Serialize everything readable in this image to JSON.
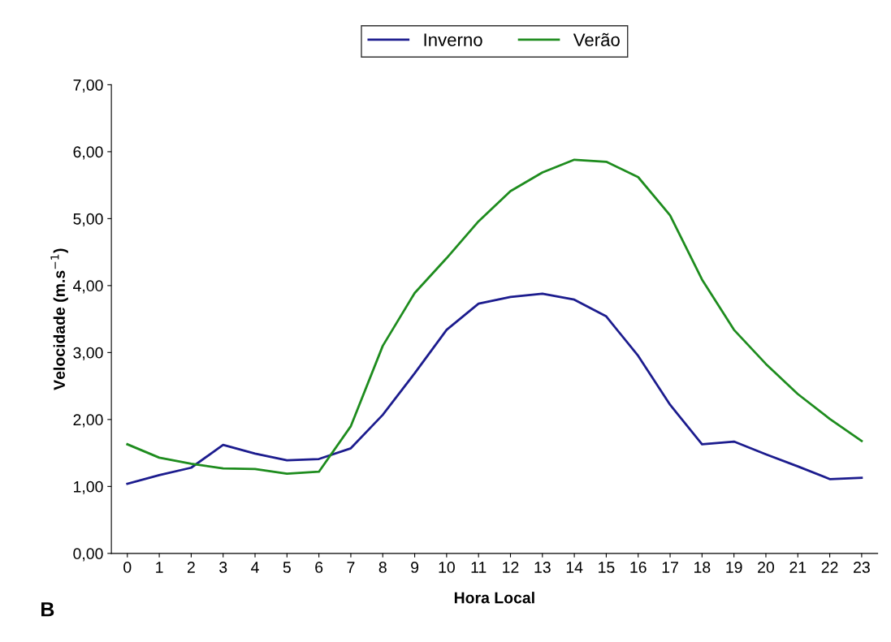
{
  "chart_data": {
    "type": "line",
    "xlabel": "Hora Local",
    "ylabel": "Velocidade (m.s$^{−1}$)",
    "categories": [
      "0",
      "1",
      "2",
      "3",
      "4",
      "5",
      "6",
      "7",
      "8",
      "9",
      "10",
      "11",
      "12",
      "13",
      "14",
      "15",
      "16",
      "17",
      "18",
      "19",
      "20",
      "21",
      "22",
      "23"
    ],
    "series": [
      {
        "name": "Inverno",
        "color": "#1c1c8e",
        "values": [
          1.04,
          1.17,
          1.28,
          1.62,
          1.49,
          1.39,
          1.41,
          1.57,
          2.07,
          2.69,
          3.34,
          3.73,
          3.83,
          3.88,
          3.79,
          3.54,
          2.95,
          2.22,
          1.63,
          1.67,
          1.48,
          1.3,
          1.11,
          1.13
        ]
      },
      {
        "name": "Verão",
        "color": "#1e8c1e",
        "values": [
          1.63,
          1.43,
          1.34,
          1.27,
          1.26,
          1.19,
          1.22,
          1.9,
          3.1,
          3.89,
          4.41,
          4.96,
          5.41,
          5.69,
          5.88,
          5.85,
          5.62,
          5.05,
          4.09,
          3.34,
          2.83,
          2.38,
          2.01,
          1.68
        ]
      }
    ],
    "ylim": [
      0,
      7
    ],
    "yticks": [
      {
        "value": 0,
        "label": "0,00"
      },
      {
        "value": 1,
        "label": "1,00"
      },
      {
        "value": 2,
        "label": "2,00"
      },
      {
        "value": 3,
        "label": "3,00"
      },
      {
        "value": 4,
        "label": "4,00"
      },
      {
        "value": 5,
        "label": "5,00"
      },
      {
        "value": 6,
        "label": "6,00"
      },
      {
        "value": 7,
        "label": "7,00"
      }
    ],
    "grid": false,
    "legend": "top",
    "marker": "none",
    "line_style": "solid",
    "annotations": [
      "B"
    ]
  }
}
